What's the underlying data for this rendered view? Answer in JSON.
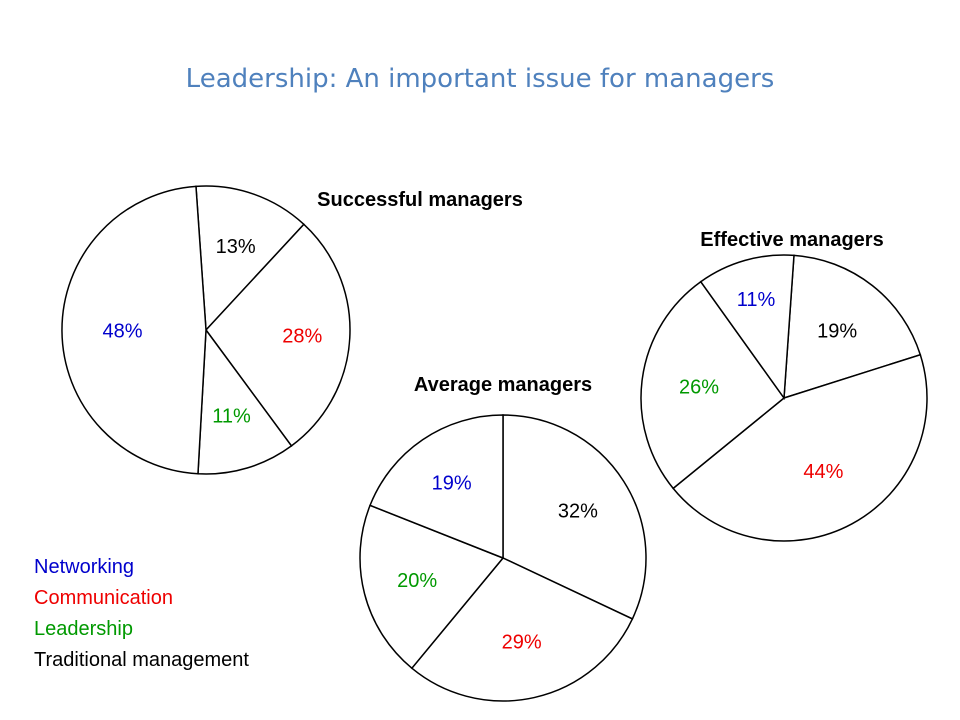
{
  "page": {
    "title": "Leadership: An important issue for managers"
  },
  "colors": {
    "Networking": "#0000cc",
    "Communication": "#ee0000",
    "Leadership": "#009900",
    "Traditional management": "#000000"
  },
  "legend": {
    "items": [
      "Networking",
      "Communication",
      "Leadership",
      "Traditional management"
    ]
  },
  "chart_data": [
    {
      "type": "pie",
      "title": "Successful managers",
      "slices": [
        {
          "category": "Traditional management",
          "value": 13,
          "label": "13%"
        },
        {
          "category": "Communication",
          "value": 28,
          "label": "28%"
        },
        {
          "category": "Leadership",
          "value": 11,
          "label": "11%"
        },
        {
          "category": "Networking",
          "value": 48,
          "label": "48%"
        }
      ]
    },
    {
      "type": "pie",
      "title": "Average managers",
      "slices": [
        {
          "category": "Traditional management",
          "value": 32,
          "label": "32%"
        },
        {
          "category": "Communication",
          "value": 29,
          "label": "29%"
        },
        {
          "category": "Leadership",
          "value": 20,
          "label": "20%"
        },
        {
          "category": "Networking",
          "value": 19,
          "label": "19%"
        }
      ]
    },
    {
      "type": "pie",
      "title": "Effective managers",
      "slices": [
        {
          "category": "Traditional management",
          "value": 19,
          "label": "19%"
        },
        {
          "category": "Communication",
          "value": 44,
          "label": "44%"
        },
        {
          "category": "Leadership",
          "value": 26,
          "label": "26%"
        },
        {
          "category": "Networking",
          "value": 11,
          "label": "11%"
        }
      ]
    }
  ]
}
